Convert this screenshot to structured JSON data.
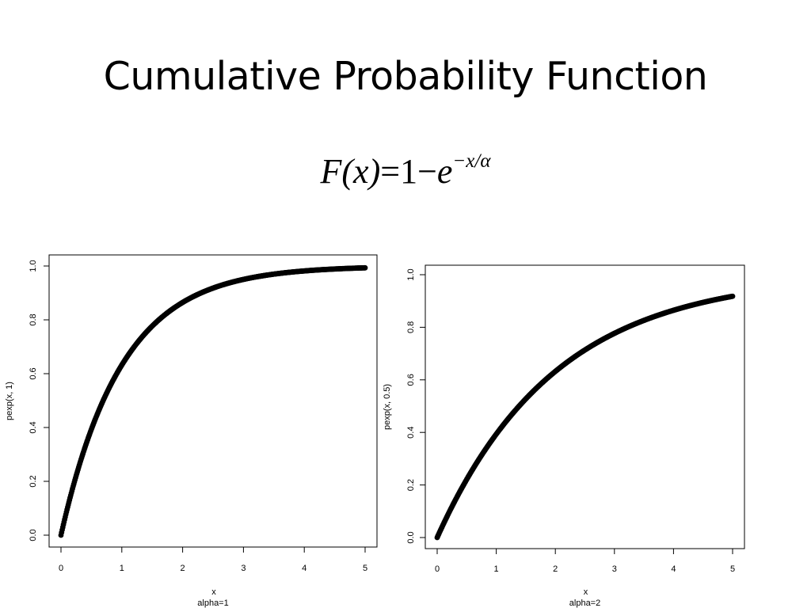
{
  "slide": {
    "title": "Cumulative Probability Function",
    "formula": {
      "lhs": "F(x)",
      "equals": "=",
      "one": "1",
      "minus": "−",
      "base": "e",
      "exponent": "−x/α"
    }
  },
  "chart_data": [
    {
      "type": "scatter",
      "function": "1 - exp(-x/alpha)",
      "alpha": 1,
      "x_range": [
        0,
        5
      ],
      "xlabel": "x",
      "sublabel": "alpha=1",
      "ylabel": "pexp(x, 1)",
      "xticks": [
        "0",
        "1",
        "2",
        "3",
        "4",
        "5"
      ],
      "yticks": [
        "0.0",
        "0.2",
        "0.4",
        "0.6",
        "0.8",
        "1.0"
      ],
      "xlim": [
        0,
        5
      ],
      "ylim": [
        0,
        1
      ],
      "sample_points": [
        [
          0,
          0
        ],
        [
          1,
          0.632
        ],
        [
          2,
          0.865
        ],
        [
          3,
          0.95
        ],
        [
          4,
          0.982
        ],
        [
          5,
          0.993
        ]
      ]
    },
    {
      "type": "scatter",
      "function": "1 - exp(-x/alpha)",
      "alpha": 2,
      "x_range": [
        0,
        5
      ],
      "xlabel": "x",
      "sublabel": "alpha=2",
      "ylabel": "pexp(x, 0.5)",
      "xticks": [
        "0",
        "1",
        "2",
        "3",
        "4",
        "5"
      ],
      "yticks": [
        "0.0",
        "0.2",
        "0.4",
        "0.6",
        "0.8",
        "1.0"
      ],
      "xlim": [
        0,
        5
      ],
      "ylim": [
        0,
        1
      ],
      "sample_points": [
        [
          0,
          0
        ],
        [
          1,
          0.393
        ],
        [
          2,
          0.632
        ],
        [
          3,
          0.777
        ],
        [
          4,
          0.865
        ],
        [
          5,
          0.918
        ]
      ]
    }
  ]
}
